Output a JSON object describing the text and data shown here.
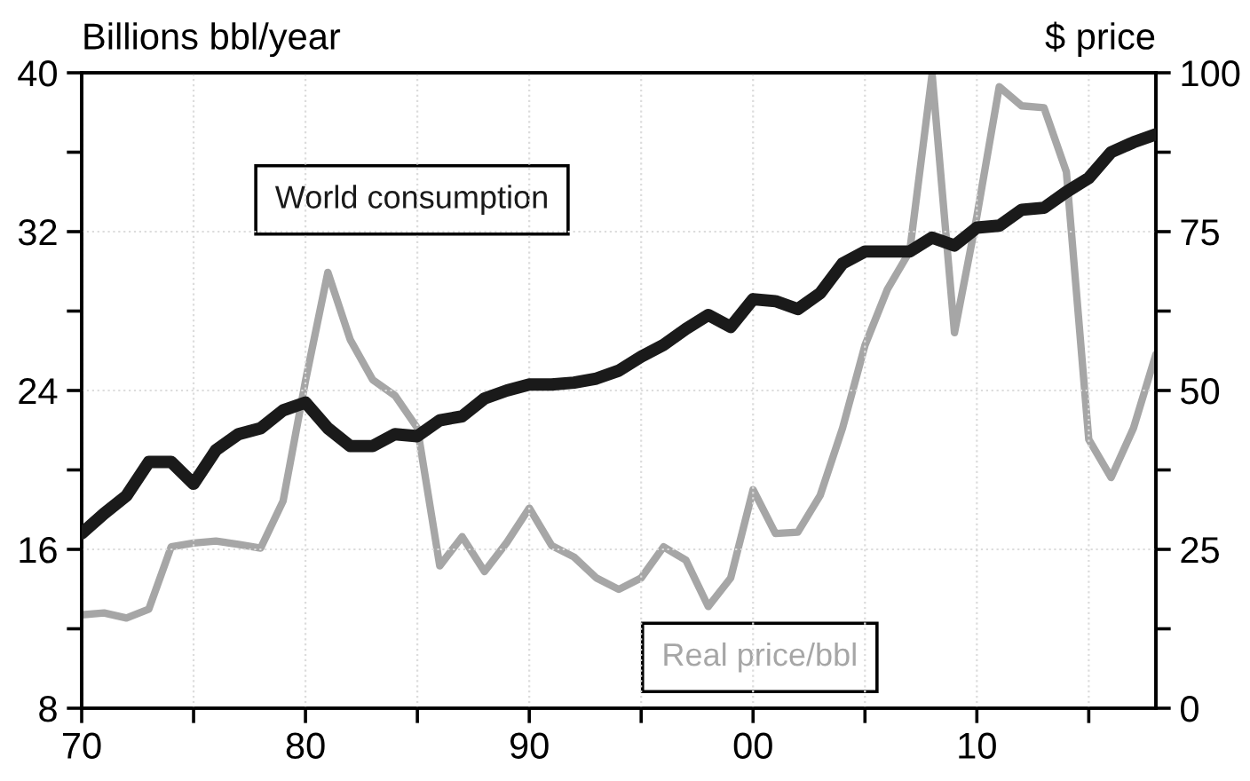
{
  "chart_data": {
    "type": "line",
    "ylabel": "Billions bbl/year",
    "y2label": "$ price",
    "x": [
      1970,
      1971,
      1972,
      1973,
      1974,
      1975,
      1976,
      1977,
      1978,
      1979,
      1980,
      1981,
      1982,
      1983,
      1984,
      1985,
      1986,
      1987,
      1988,
      1989,
      1990,
      1991,
      1992,
      1993,
      1994,
      1995,
      1996,
      1997,
      1998,
      1999,
      2000,
      2001,
      2002,
      2003,
      2004,
      2005,
      2006,
      2007,
      2008,
      2009,
      2010,
      2011,
      2012,
      2013,
      2014,
      2015,
      2016,
      2017,
      2018
    ],
    "series": [
      {
        "name": "World consumption",
        "color": "#1a1a1a",
        "values": [
          16.8,
          17.8,
          18.7,
          20.4,
          20.4,
          19.3,
          21.0,
          21.8,
          22.1,
          23.0,
          23.4,
          22.1,
          21.2,
          21.2,
          21.8,
          21.7,
          22.5,
          22.7,
          23.6,
          24.0,
          24.3,
          24.3,
          24.4,
          24.6,
          25.0,
          25.7,
          26.3,
          27.1,
          27.8,
          27.2,
          28.6,
          28.5,
          28.1,
          28.9,
          30.4,
          31.0,
          31.0,
          31.0,
          31.7,
          31.3,
          32.2,
          32.3,
          33.1,
          33.2,
          34.0,
          34.7,
          36.0,
          36.5,
          36.9
        ]
      },
      {
        "name": "Real price/bbl",
        "color": "#a6a6a6",
        "axis": "y2",
        "values": [
          14.7,
          15.0,
          14.2,
          15.6,
          25.4,
          26.0,
          26.3,
          25.8,
          25.2,
          32.6,
          51.5,
          68.6,
          58.0,
          51.7,
          49.2,
          44.1,
          22.4,
          27.0,
          21.5,
          26.1,
          31.5,
          25.6,
          23.8,
          20.5,
          18.7,
          20.5,
          25.4,
          23.3,
          16,
          20.5,
          34.4,
          27.5,
          27.7,
          33.5,
          44.1,
          57.1,
          65.9,
          71.9,
          99.8,
          59.1,
          77.4,
          97.8,
          94.8,
          94.5,
          84.4,
          42.3,
          36.3,
          44.1,
          55.7
        ]
      }
    ],
    "xlim": [
      1970,
      2018
    ],
    "xticks": [
      {
        "value": 1970,
        "label": "70"
      },
      {
        "value": 1975,
        "label": null
      },
      {
        "value": 1980,
        "label": "80"
      },
      {
        "value": 1985,
        "label": null
      },
      {
        "value": 1990,
        "label": "90"
      },
      {
        "value": 1995,
        "label": null
      },
      {
        "value": 2000,
        "label": "00"
      },
      {
        "value": 2005,
        "label": null
      },
      {
        "value": 2010,
        "label": "10"
      },
      {
        "value": 2015,
        "label": null
      }
    ],
    "ylim": [
      8,
      40
    ],
    "yticks": [
      8,
      {
        "value": 12,
        "label": null
      },
      16,
      {
        "value": 20,
        "label": null
      },
      24,
      {
        "value": 28,
        "label": null
      },
      32,
      {
        "value": 36,
        "label": null
      },
      40
    ],
    "y2lim": [
      0,
      100
    ],
    "y2ticks": [
      0,
      {
        "value": 12.5,
        "label": null
      },
      25,
      {
        "value": 37.5,
        "label": null
      },
      50,
      {
        "value": 62.5,
        "label": null
      },
      75,
      {
        "value": 87.5,
        "label": null
      },
      100
    ],
    "grid": true,
    "line_style": "solid",
    "marker": "none"
  }
}
